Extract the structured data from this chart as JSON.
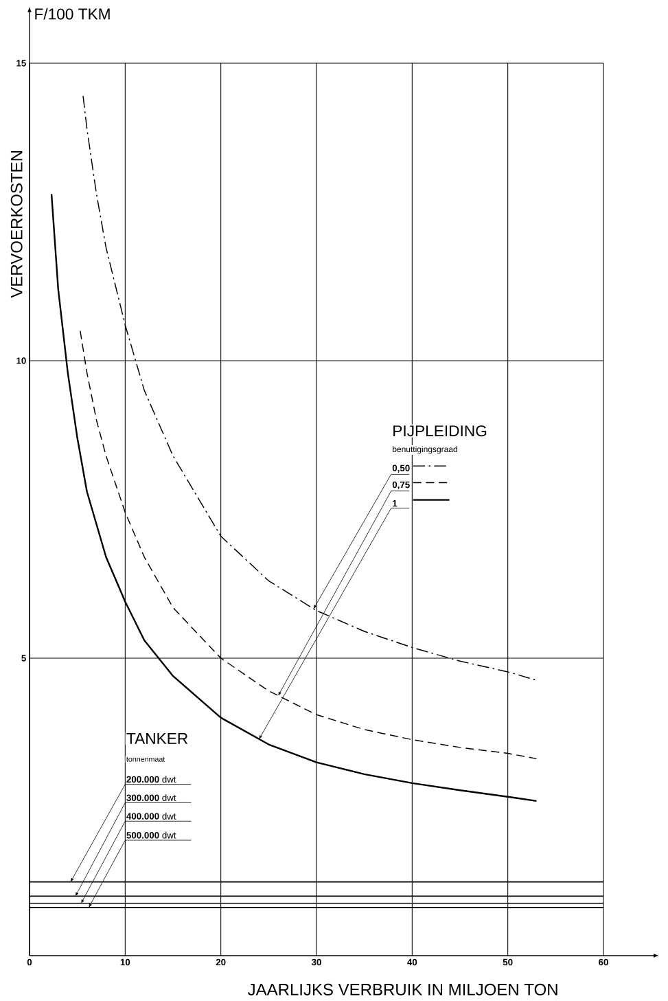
{
  "chart_data": {
    "type": "line",
    "xlabel": "JAARLIJKS VERBRUIK IN MILJOEN TON",
    "ylabel": "VERVOERKOSTEN",
    "annotations": [
      "F/100 TKM",
      "PIJPLEIDING",
      "benuttigingsgraad",
      "TANKER",
      "tonnenmaat"
    ],
    "xlim": [
      0,
      60
    ],
    "ylim": [
      0,
      15
    ],
    "xticks": [
      0,
      10,
      20,
      30,
      40,
      50,
      60
    ],
    "yticks": [
      5,
      10,
      15
    ],
    "grid": true,
    "legend": "right",
    "series": [
      {
        "name": "**0,50**",
        "color": "#000000",
        "line_style": "dashdot",
        "x": [
          5.6,
          6,
          7,
          8,
          10,
          12,
          15,
          20,
          25,
          30,
          35,
          40,
          45,
          50,
          53
        ],
        "values": [
          14.45,
          13.9,
          12.8,
          11.9,
          10.6,
          9.5,
          8.4,
          7.05,
          6.3,
          5.8,
          5.45,
          5.18,
          4.95,
          4.77,
          4.63
        ]
      },
      {
        "name": "**0,75**",
        "color": "#000000",
        "line_style": "dashed",
        "x": [
          5.3,
          6,
          7,
          8,
          10,
          12,
          15,
          20,
          25,
          30,
          35,
          40,
          45,
          50,
          53
        ],
        "values": [
          10.5,
          9.8,
          9.0,
          8.4,
          7.45,
          6.7,
          5.85,
          5.0,
          4.45,
          4.05,
          3.8,
          3.63,
          3.5,
          3.4,
          3.31
        ]
      },
      {
        "name": "**1**",
        "color": "#000000",
        "line_style": "solid",
        "x": [
          2.3,
          3,
          4,
          5,
          6,
          8,
          10,
          12,
          15,
          20,
          25,
          30,
          35,
          40,
          45,
          50,
          53
        ],
        "values": [
          12.8,
          11.2,
          9.8,
          8.7,
          7.8,
          6.7,
          5.95,
          5.3,
          4.7,
          4.0,
          3.55,
          3.25,
          3.05,
          2.9,
          2.78,
          2.67,
          2.6
        ]
      },
      {
        "name": "**200.000** dwt",
        "color": "#000000",
        "line_style": "solid",
        "x": [
          0,
          60
        ],
        "values": [
          1.24,
          1.24
        ]
      },
      {
        "name": "**300.000** dwt",
        "color": "#000000",
        "line_style": "solid",
        "x": [
          0,
          60
        ],
        "values": [
          1.0,
          1.0
        ]
      },
      {
        "name": "**400.000** dwt",
        "color": "#000000",
        "line_style": "solid",
        "x": [
          0,
          60
        ],
        "values": [
          0.88,
          0.88
        ]
      },
      {
        "name": "**500.000** dwt",
        "color": "#000000",
        "line_style": "solid",
        "x": [
          0,
          60
        ],
        "values": [
          0.81,
          0.81
        ]
      }
    ]
  }
}
